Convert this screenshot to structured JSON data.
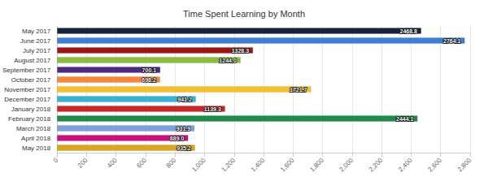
{
  "chart_data": {
    "type": "bar",
    "orientation": "horizontal",
    "title": "Time Spent Learning by Month",
    "categories": [
      "May 2017",
      "June 2017",
      "July 2017",
      "August 2017",
      "September 2017",
      "October 2017",
      "November 2017",
      "December 2017",
      "January 2018",
      "February 2018",
      "March 2018",
      "April 2018",
      "May 2018"
    ],
    "values": [
      2468.8,
      2764.1,
      1328.3,
      1244.0,
      700.1,
      698.2,
      1721.7,
      941.2,
      1139.3,
      2444.1,
      931.9,
      889.0,
      935.2
    ],
    "value_labels": [
      "2468.8",
      "2764.1",
      "1328.3",
      "1244.0",
      "700.1",
      "698.2",
      "1721.7",
      "941.2",
      "1139.3",
      "2444.1",
      "931.9",
      "889.0",
      "935.2"
    ],
    "colors": [
      "#16243b",
      "#3a7fd5",
      "#9e1414",
      "#8dbb3a",
      "#4b2b7f",
      "#f7853a",
      "#f5c02c",
      "#3ab3d3",
      "#c62828",
      "#1e8a4a",
      "#7d9fe0",
      "#c8107a",
      "#d9a520"
    ],
    "data_labels": true,
    "grid": true,
    "xlim": [
      0,
      2800
    ],
    "xticks": [
      0,
      200,
      400,
      600,
      800,
      {
        "value": 1000,
        "label": "1,000"
      },
      {
        "value": 1200,
        "label": "1,200"
      },
      {
        "value": 1400,
        "label": "1,400"
      },
      {
        "value": 1600,
        "label": "1,600"
      },
      {
        "value": 1800,
        "label": "1,800"
      },
      {
        "value": 2000,
        "label": "2,000"
      },
      {
        "value": 2200,
        "label": "2,200"
      },
      {
        "value": 2400,
        "label": "2,400"
      },
      {
        "value": 2600,
        "label": "2,600"
      },
      {
        "value": 2800,
        "label": "2,800"
      }
    ]
  }
}
